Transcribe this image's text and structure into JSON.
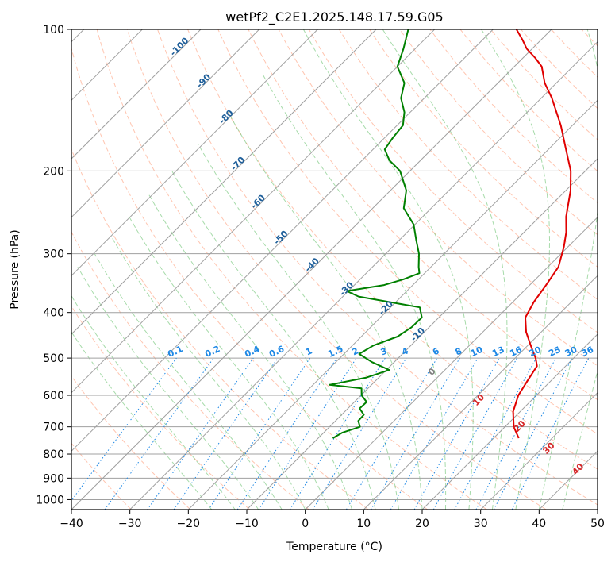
{
  "chart_data": {
    "type": "line",
    "title": "wetPf2_C2E1.2025.148.17.59.G05",
    "xlabel": "Temperature (°C)",
    "ylabel": "Pressure (hPa)",
    "xlim": [
      -40,
      50
    ],
    "ylim": [
      1050,
      100
    ],
    "y_scale": "log",
    "grid": true,
    "x_ticks": [
      -40,
      -30,
      -20,
      -10,
      0,
      10,
      20,
      30,
      40,
      50
    ],
    "y_ticks": [
      100,
      200,
      300,
      400,
      500,
      600,
      700,
      800,
      900,
      1000
    ],
    "series": [
      {
        "color": "#e00000",
        "p": [
          740,
          700,
          650,
          600,
          560,
          520,
          500,
          470,
          440,
          410,
          380,
          350,
          320,
          290,
          270,
          250,
          220,
          200,
          180,
          160,
          140,
          130,
          120,
          115,
          110,
          105,
          100
        ],
        "t": [
          24.3,
          21.5,
          18.8,
          16.9,
          16.0,
          15.1,
          13.5,
          10.5,
          7.4,
          4.8,
          3.6,
          2.8,
          1.8,
          -0.7,
          -2.8,
          -5.5,
          -9.2,
          -12.5,
          -17.0,
          -22.0,
          -28.2,
          -32.0,
          -35.3,
          -37.9,
          -40.9,
          -43.3,
          -46.0
        ]
      },
      {
        "color": "#008000",
        "p": [
          740,
          720,
          700,
          680,
          660,
          640,
          620,
          600,
          580,
          570,
          550,
          530,
          510,
          490,
          470,
          450,
          430,
          410,
          390,
          370,
          360,
          350,
          340,
          330,
          320,
          300,
          280,
          260,
          240,
          220,
          200,
          190,
          180,
          170,
          160,
          150,
          140,
          130,
          120,
          110,
          100
        ],
        "t": [
          -7.5,
          -6.8,
          -4.8,
          -6.1,
          -6.2,
          -8.0,
          -7.9,
          -9.9,
          -11.1,
          -17.2,
          -12.1,
          -9.5,
          -13.8,
          -17.4,
          -16.4,
          -13.8,
          -13.0,
          -12.9,
          -15.0,
          -27.3,
          -30.3,
          -25.0,
          -22.6,
          -20.9,
          -22.1,
          -24.3,
          -27.2,
          -30.2,
          -34.7,
          -37.3,
          -41.7,
          -45.3,
          -48.0,
          -48.6,
          -49.0,
          -51.0,
          -54.0,
          -56.0,
          -60.0,
          -62.0,
          -64.5
        ]
      }
    ],
    "dry_adiabat_labels": [
      "-100",
      "-90",
      "-80",
      "-70",
      "-60",
      "-50",
      "-40",
      "-30",
      "-20",
      "-10"
    ],
    "moist_adiabat_labels": [
      "0",
      "10",
      "20",
      "30",
      "40"
    ],
    "mixing_ratio_labels": [
      "0.1",
      "0.2",
      "0.4",
      "0.6",
      "1",
      "1.5",
      "2",
      "3",
      "4",
      "6",
      "8",
      "10",
      "13",
      "16",
      "20",
      "25",
      "30",
      "36"
    ],
    "colors": {
      "temperature": "#e00000",
      "dewpoint": "#008000",
      "isotherm": "#a0a0a0",
      "isobar": "#a0a0a0",
      "dry_adiabat": "#ff7f50",
      "moist_adiabat": "#3cb043",
      "mixing_ratio": "#1e88e5",
      "dry_label": "#1f5f9a",
      "moist_label": "#d62728",
      "mr_label": "#1e88e5"
    }
  }
}
